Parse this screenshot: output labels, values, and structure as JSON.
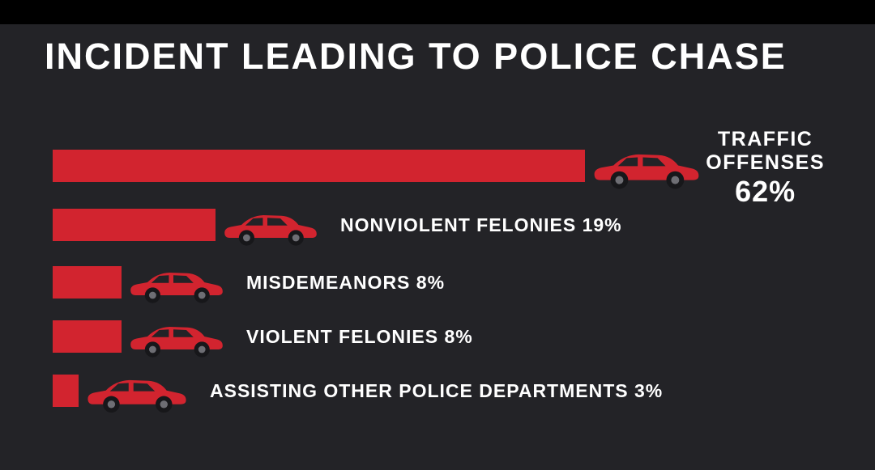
{
  "title": "INCIDENT LEADING TO POLICE CHASE",
  "colors": {
    "background": "#232327",
    "top_strip": "#000000",
    "bar": "#d2242f",
    "text": "#ffffff"
  },
  "chart_data": {
    "type": "bar",
    "orientation": "horizontal",
    "title": "INCIDENT LEADING TO POLICE CHASE",
    "categories": [
      "TRAFFIC OFFENSES",
      "NONVIOLENT FELONIES",
      "MISDEMEANORS",
      "VIOLENT FELONIES",
      "ASSISTING OTHER POLICE DEPARTMENTS"
    ],
    "values": [
      62,
      19,
      8,
      8,
      3
    ],
    "unit": "%",
    "xlim": [
      0,
      70
    ],
    "grid": false,
    "legend": "none",
    "traffic": {
      "label_line1": "TRAFFIC",
      "label_line2": "OFFENSES",
      "value_label": "62%",
      "value": 62
    },
    "rows": [
      {
        "label": "NONVIOLENT FELONIES 19%",
        "value": 19
      },
      {
        "label": "MISDEMEANORS 8%",
        "value": 8
      },
      {
        "label": "VIOLENT FELONIES 8%",
        "value": 8
      },
      {
        "label": "ASSISTING OTHER POLICE DEPARTMENTS 3%",
        "value": 3
      }
    ]
  }
}
